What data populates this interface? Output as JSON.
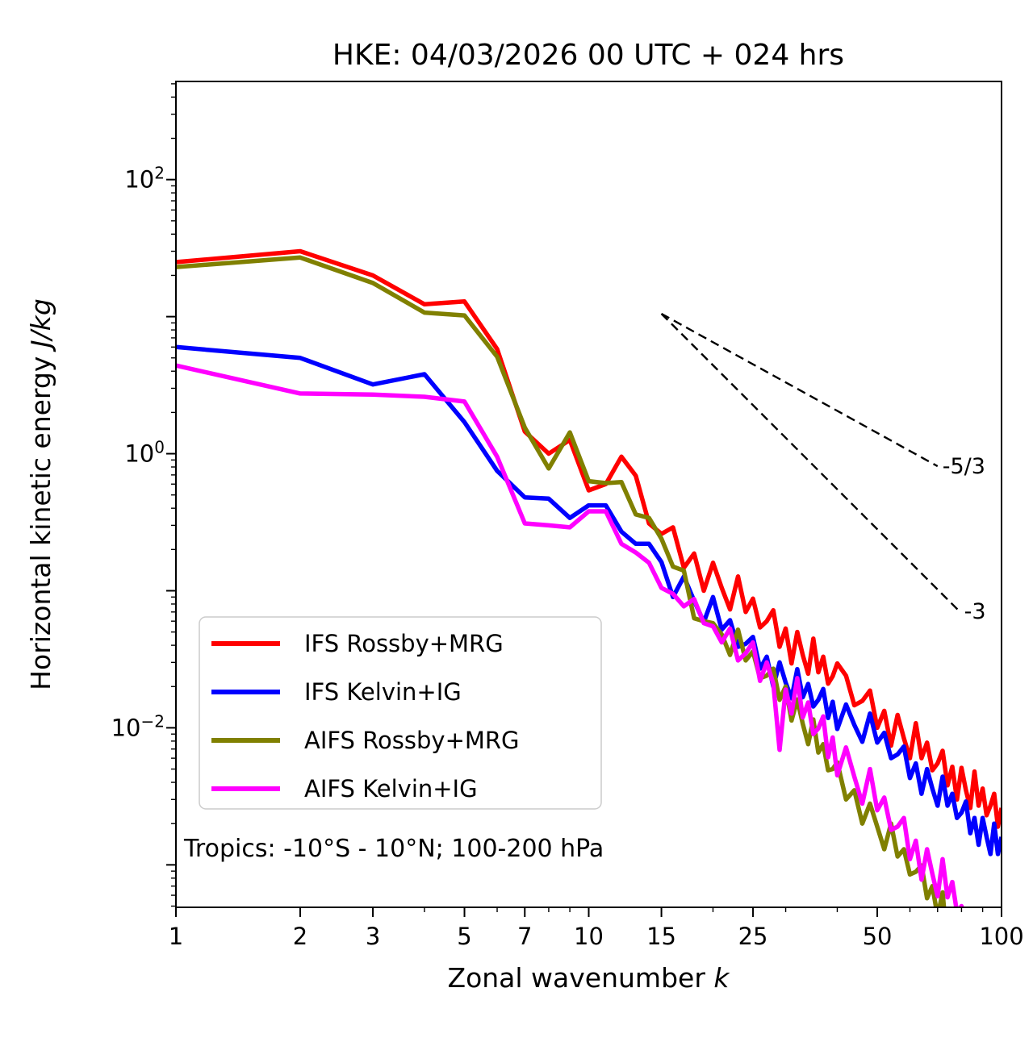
{
  "title": "HKE: 04/03/2026 00 UTC + 024 hrs",
  "axes": {
    "xlabel_text": "Zonal wavenumber ",
    "xlabel_symbol": "k",
    "ylabel_text": "Horizontal kinetic energy ",
    "ylabel_symbol": "J/kg",
    "annotation": "Tropics: -10°S - 10°N; 100-200 hPa"
  },
  "legend": {
    "items": [
      {
        "label": "IFS Rossby+MRG",
        "color": "#ff0000"
      },
      {
        "label": "IFS Kelvin+IG",
        "color": "#0000ff"
      },
      {
        "label": "AIFS Rossby+MRG",
        "color": "#808000"
      },
      {
        "label": "AIFS Kelvin+IG",
        "color": "#ff00ff"
      }
    ]
  },
  "chart_data": {
    "type": "line",
    "title": "HKE: 04/03/2026 00 UTC + 024 hrs",
    "xlabel": "Zonal wavenumber k",
    "ylabel": "Horizontal kinetic energy J/kg",
    "x_scale": "log",
    "y_scale": "log",
    "xlim": [
      1,
      100
    ],
    "ylim": [
      0.00049,
      520
    ],
    "grid": false,
    "legend_position": "lower left",
    "x_major_ticks": [
      1,
      2,
      3,
      5,
      7,
      10,
      15,
      25,
      50,
      100
    ],
    "x_major_tick_labels": [
      "1",
      "2",
      "3",
      "5",
      "7",
      "10",
      "15",
      "25",
      "50",
      "100"
    ],
    "x_minor_ticks": [
      4,
      6,
      8,
      9,
      20,
      30,
      40,
      60,
      70,
      80,
      90
    ],
    "y_labeled_tick_exponents": [
      2,
      0,
      -2
    ],
    "y_unlabeled_tick_exponents": [
      1,
      -1,
      -3
    ],
    "series": [
      {
        "name": "IFS Rossby+MRG",
        "color": "#ff0000",
        "points": [
          [
            1,
            25
          ],
          [
            2,
            30
          ],
          [
            3,
            20
          ],
          [
            4,
            12.3
          ],
          [
            5,
            12.9
          ],
          [
            6,
            5.8
          ],
          [
            7,
            1.45
          ],
          [
            8,
            1.0
          ],
          [
            9,
            1.26
          ],
          [
            10,
            0.54
          ],
          [
            11,
            0.6
          ],
          [
            12,
            0.95
          ],
          [
            13,
            0.69
          ],
          [
            14,
            0.31
          ],
          [
            15,
            0.26
          ],
          [
            16,
            0.29
          ],
          [
            17,
            0.147
          ],
          [
            18,
            0.187
          ],
          [
            19,
            0.1
          ],
          [
            20,
            0.16
          ],
          [
            21,
            0.105
          ],
          [
            22,
            0.073
          ],
          [
            23,
            0.127
          ],
          [
            24,
            0.07
          ],
          [
            25,
            0.0875
          ],
          [
            26,
            0.054
          ],
          [
            27,
            0.06
          ],
          [
            28,
            0.072
          ],
          [
            29,
            0.039
          ],
          [
            30,
            0.053
          ],
          [
            31,
            0.0295
          ],
          [
            32,
            0.05
          ],
          [
            33,
            0.034
          ],
          [
            34,
            0.0248
          ],
          [
            35,
            0.0447
          ],
          [
            36,
            0.0254
          ],
          [
            37,
            0.033
          ],
          [
            38,
            0.021
          ],
          [
            39,
            0.0238
          ],
          [
            40,
            0.0295
          ],
          [
            42,
            0.024
          ],
          [
            44,
            0.0146
          ],
          [
            46,
            0.0157
          ],
          [
            48,
            0.0187
          ],
          [
            50,
            0.01
          ],
          [
            52,
            0.0133
          ],
          [
            54,
            0.0074
          ],
          [
            56,
            0.0124
          ],
          [
            58,
            0.0084
          ],
          [
            60,
            0.006
          ],
          [
            62,
            0.0108
          ],
          [
            64,
            0.006
          ],
          [
            66,
            0.0078
          ],
          [
            68,
            0.0049
          ],
          [
            70,
            0.0055
          ],
          [
            72,
            0.0068
          ],
          [
            74,
            0.0038
          ],
          [
            76,
            0.0052
          ],
          [
            78,
            0.003
          ],
          [
            80,
            0.0051
          ],
          [
            82,
            0.0035
          ],
          [
            84,
            0.0026
          ],
          [
            86,
            0.0048
          ],
          [
            88,
            0.0027
          ],
          [
            90,
            0.0036
          ],
          [
            92,
            0.0023
          ],
          [
            94,
            0.0027
          ],
          [
            96,
            0.0033
          ],
          [
            98,
            0.0019
          ],
          [
            100,
            0.0026
          ]
        ]
      },
      {
        "name": "IFS Kelvin+IG",
        "color": "#0000ff",
        "points": [
          [
            1,
            6.0
          ],
          [
            2,
            5.0
          ],
          [
            3,
            3.2
          ],
          [
            4,
            3.8
          ],
          [
            5,
            1.7
          ],
          [
            6,
            0.75
          ],
          [
            7,
            0.48
          ],
          [
            8,
            0.47
          ],
          [
            9,
            0.34
          ],
          [
            10,
            0.42
          ],
          [
            11,
            0.42
          ],
          [
            12,
            0.27
          ],
          [
            13,
            0.22
          ],
          [
            14,
            0.22
          ],
          [
            15,
            0.162
          ],
          [
            16,
            0.09
          ],
          [
            17,
            0.127
          ],
          [
            18,
            0.0845
          ],
          [
            19,
            0.059
          ],
          [
            20,
            0.09
          ],
          [
            21,
            0.052
          ],
          [
            22,
            0.061
          ],
          [
            23,
            0.039
          ],
          [
            24,
            0.041
          ],
          [
            25,
            0.046
          ],
          [
            26,
            0.027
          ],
          [
            27,
            0.033
          ],
          [
            28,
            0.02
          ],
          [
            29,
            0.03
          ],
          [
            30,
            0.0214
          ],
          [
            31,
            0.0164
          ],
          [
            32,
            0.0268
          ],
          [
            33,
            0.0167
          ],
          [
            34,
            0.0209
          ],
          [
            35,
            0.0143
          ],
          [
            36,
            0.016
          ],
          [
            37,
            0.0192
          ],
          [
            38,
            0.0118
          ],
          [
            39,
            0.0155
          ],
          [
            40,
            0.0098
          ],
          [
            42,
            0.0148
          ],
          [
            44,
            0.0105
          ],
          [
            46,
            0.0079
          ],
          [
            48,
            0.0127
          ],
          [
            50,
            0.0078
          ],
          [
            52,
            0.0092
          ],
          [
            54,
            0.006
          ],
          [
            56,
            0.0064
          ],
          [
            58,
            0.0073
          ],
          [
            60,
            0.0043
          ],
          [
            62,
            0.0055
          ],
          [
            64,
            0.0033
          ],
          [
            66,
            0.005
          ],
          [
            68,
            0.0036
          ],
          [
            70,
            0.0027
          ],
          [
            72,
            0.0044
          ],
          [
            74,
            0.0027
          ],
          [
            76,
            0.0033
          ],
          [
            78,
            0.0022
          ],
          [
            80,
            0.0024
          ],
          [
            82,
            0.0029
          ],
          [
            84,
            0.0017
          ],
          [
            86,
            0.0022
          ],
          [
            88,
            0.0014
          ],
          [
            90,
            0.0022
          ],
          [
            92,
            0.0016
          ],
          [
            94,
            0.0012
          ],
          [
            96,
            0.002
          ],
          [
            98,
            0.0012
          ],
          [
            100,
            0.0016
          ]
        ]
      },
      {
        "name": "AIFS Rossby+MRG",
        "color": "#808000",
        "points": [
          [
            1,
            23
          ],
          [
            2,
            27
          ],
          [
            3,
            17.6
          ],
          [
            4,
            10.7
          ],
          [
            5,
            10.2
          ],
          [
            6,
            5.1
          ],
          [
            7,
            1.55
          ],
          [
            8,
            0.78
          ],
          [
            9,
            1.43
          ],
          [
            10,
            0.63
          ],
          [
            11,
            0.61
          ],
          [
            12,
            0.62
          ],
          [
            13,
            0.36
          ],
          [
            14,
            0.34
          ],
          [
            15,
            0.24
          ],
          [
            16,
            0.15
          ],
          [
            17,
            0.14
          ],
          [
            18,
            0.063
          ],
          [
            19,
            0.06
          ],
          [
            20,
            0.058
          ],
          [
            21,
            0.048
          ],
          [
            22,
            0.034
          ],
          [
            23,
            0.052
          ],
          [
            24,
            0.031
          ],
          [
            25,
            0.036
          ],
          [
            26,
            0.023
          ],
          [
            27,
            0.024
          ],
          [
            28,
            0.027
          ],
          [
            29,
            0.016
          ],
          [
            30,
            0.02
          ],
          [
            31,
            0.0113
          ],
          [
            32,
            0.0161
          ],
          [
            33,
            0.0107
          ],
          [
            34,
            0.0076
          ],
          [
            35,
            0.0115
          ],
          [
            36,
            0.0066
          ],
          [
            37,
            0.0076
          ],
          [
            38,
            0.0049
          ],
          [
            39,
            0.005
          ],
          [
            40,
            0.0056
          ],
          [
            42,
            0.003
          ],
          [
            44,
            0.0035
          ],
          [
            46,
            0.002
          ],
          [
            48,
            0.0028
          ],
          [
            50,
            0.0019
          ],
          [
            52,
            0.0013
          ],
          [
            54,
            0.002
          ],
          [
            56,
            0.00115
          ],
          [
            58,
            0.0013
          ],
          [
            60,
            0.00085
          ],
          [
            62,
            0.00089
          ],
          [
            64,
            0.00099
          ],
          [
            66,
            0.00057
          ],
          [
            68,
            0.0007
          ],
          [
            70,
            0.00042
          ],
          [
            72,
            0.00063
          ],
          [
            74,
            0.00025
          ]
        ]
      },
      {
        "name": "AIFS Kelvin+IG",
        "color": "#ff00ff",
        "points": [
          [
            1,
            4.4
          ],
          [
            2,
            2.75
          ],
          [
            3,
            2.7
          ],
          [
            4,
            2.6
          ],
          [
            5,
            2.4
          ],
          [
            6,
            0.95
          ],
          [
            7,
            0.31
          ],
          [
            8,
            0.3
          ],
          [
            9,
            0.29
          ],
          [
            10,
            0.38
          ],
          [
            11,
            0.38
          ],
          [
            12,
            0.22
          ],
          [
            13,
            0.19
          ],
          [
            14,
            0.16
          ],
          [
            15,
            0.105
          ],
          [
            16,
            0.095
          ],
          [
            17,
            0.077
          ],
          [
            18,
            0.087
          ],
          [
            19,
            0.058
          ],
          [
            20,
            0.055
          ],
          [
            21,
            0.042
          ],
          [
            22,
            0.053
          ],
          [
            23,
            0.031
          ],
          [
            24,
            0.035
          ],
          [
            25,
            0.042
          ],
          [
            26,
            0.022
          ],
          [
            27,
            0.03
          ],
          [
            28,
            0.021
          ],
          [
            29,
            0.0069
          ],
          [
            30,
            0.019
          ],
          [
            31,
            0.0127
          ],
          [
            32,
            0.023
          ],
          [
            33,
            0.0119
          ],
          [
            34,
            0.0153
          ],
          [
            35,
            0.009
          ],
          [
            36,
            0.0099
          ],
          [
            37,
            0.0121
          ],
          [
            38,
            0.0061
          ],
          [
            39,
            0.0085
          ],
          [
            40,
            0.0045
          ],
          [
            42,
            0.0072
          ],
          [
            44,
            0.0044
          ],
          [
            46,
            0.0028
          ],
          [
            48,
            0.005
          ],
          [
            50,
            0.0025
          ],
          [
            52,
            0.0031
          ],
          [
            54,
            0.0018
          ],
          [
            56,
            0.0019
          ],
          [
            58,
            0.0022
          ],
          [
            60,
            0.0011
          ],
          [
            62,
            0.0015
          ],
          [
            64,
            0.00078
          ],
          [
            66,
            0.0013
          ],
          [
            68,
            0.00086
          ],
          [
            70,
            0.00059
          ],
          [
            72,
            0.0011
          ],
          [
            74,
            0.00058
          ],
          [
            76,
            0.00075
          ],
          [
            78,
            0.00045
          ],
          [
            80,
            0.0005
          ],
          [
            82,
            0.00035
          ]
        ]
      }
    ],
    "reference_lines": [
      {
        "label": "-5/3",
        "x": [
          15,
          70
        ],
        "y": [
          10.5,
          0.81
        ],
        "style": "dashed",
        "color": "#000000"
      },
      {
        "label": "-3",
        "x": [
          15,
          79
        ],
        "y": [
          10.5,
          0.071
        ],
        "style": "dashed",
        "color": "#000000"
      }
    ]
  }
}
